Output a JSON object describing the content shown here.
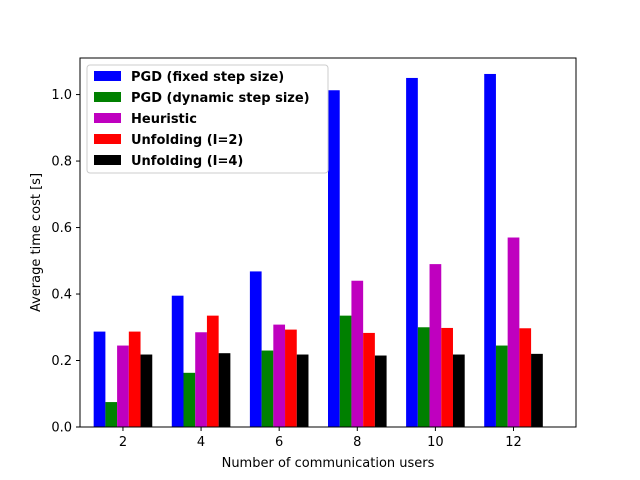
{
  "chart_data": {
    "type": "bar",
    "title": "",
    "xlabel": "Number of communication users",
    "ylabel": "Average time cost [s]",
    "categories": [
      "2",
      "4",
      "6",
      "8",
      "10",
      "12"
    ],
    "x": [
      2,
      4,
      6,
      8,
      10,
      12
    ],
    "xlim": [
      0.9,
      13.6
    ],
    "ylim": [
      0.0,
      1.11
    ],
    "xticks": [
      2,
      4,
      6,
      8,
      10,
      12
    ],
    "yticks": [
      0.0,
      0.2,
      0.4,
      0.6,
      0.8,
      1.0
    ],
    "ytick_labels": [
      "0.0",
      "0.2",
      "0.4",
      "0.6",
      "0.8",
      "1.0"
    ],
    "grid": false,
    "legend_position": "top-left",
    "series": [
      {
        "name": "PGD (fixed step size)",
        "color": "#0000ff",
        "values": [
          0.287,
          0.395,
          0.468,
          1.013,
          1.05,
          1.062
        ]
      },
      {
        "name": "PGD (dynamic step size)",
        "color": "#008000",
        "values": [
          0.075,
          0.163,
          0.23,
          0.335,
          0.3,
          0.245
        ]
      },
      {
        "name": "Heuristic",
        "color": "#bf00bf",
        "values": [
          0.245,
          0.285,
          0.308,
          0.44,
          0.49,
          0.57
        ]
      },
      {
        "name": "Unfolding (I=2)",
        "color": "#ff0000",
        "values": [
          0.287,
          0.335,
          0.293,
          0.283,
          0.298,
          0.297
        ]
      },
      {
        "name": "Unfolding (I=4)",
        "color": "#000000",
        "values": [
          0.218,
          0.222,
          0.218,
          0.215,
          0.218,
          0.22
        ]
      }
    ]
  }
}
